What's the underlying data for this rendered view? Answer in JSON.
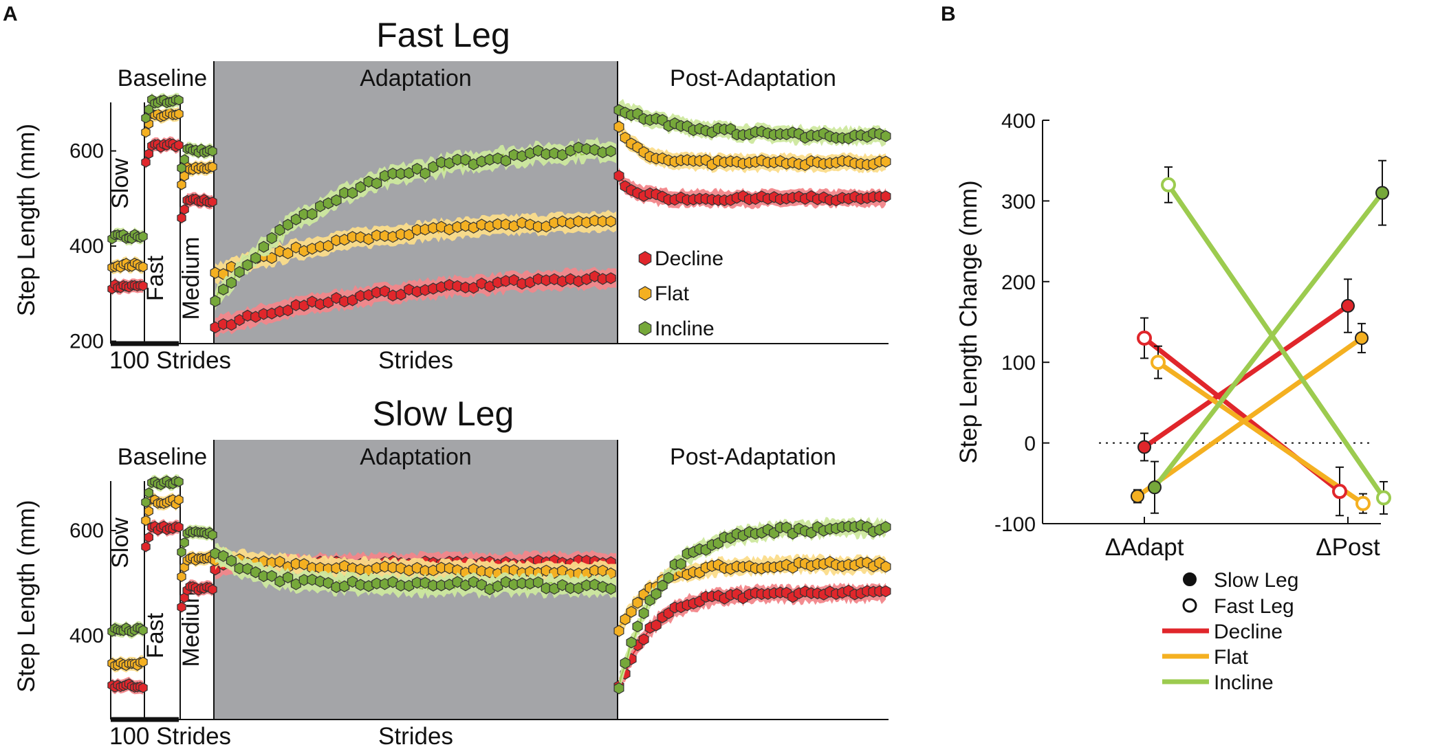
{
  "figure": {
    "panel_a_letter": "A",
    "panel_b_letter": "B"
  },
  "colors": {
    "decline": "#e0262b",
    "decline_band": "#f2868a",
    "flat": "#f4b021",
    "flat_band": "#fbdc8a",
    "incline": "#9ccb4f",
    "incline_band": "#cde89e",
    "incline_marker": "#76a83a",
    "adaptation_bg": "#a4a5a8"
  },
  "chart_data": [
    {
      "type": "line",
      "id": "fast-leg",
      "title": "Fast Leg",
      "ylabel": "Step Length (mm)",
      "ylim": [
        195,
        715
      ],
      "yticks": [
        200,
        400,
        600
      ],
      "sections": [
        "Baseline",
        "Adaptation",
        "Post-Adaptation"
      ],
      "baseline_labels": [
        "Slow",
        "Fast",
        "Medium"
      ],
      "xlabel_left": "100 Strides",
      "xlabel_center": "Strides",
      "series": [
        {
          "name": "Decline",
          "baseline": [
            315,
            612,
            495
          ],
          "adaptation": {
            "start": 230,
            "end": 345,
            "tau": 0.45,
            "noise": 6
          },
          "post": {
            "start": 545,
            "end": 500,
            "tau": 0.06,
            "noise": 5
          }
        },
        {
          "name": "Flat",
          "baseline": [
            360,
            675,
            565
          ],
          "adaptation": {
            "start": 340,
            "end": 458,
            "tau": 0.35,
            "noise": 6
          },
          "post": {
            "start": 650,
            "end": 575,
            "tau": 0.08,
            "noise": 5
          }
        },
        {
          "name": "Incline",
          "baseline": [
            420,
            705,
            600
          ],
          "adaptation": {
            "start": 285,
            "end": 612,
            "tau": 0.28,
            "noise": 9
          },
          "post": {
            "start": 690,
            "end": 630,
            "tau": 0.25,
            "noise": 6
          }
        }
      ],
      "legend": [
        "Decline",
        "Flat",
        "Incline"
      ]
    },
    {
      "type": "line",
      "id": "slow-leg",
      "title": "Slow Leg",
      "ylabel": "Step Length (mm)",
      "ylim": [
        240,
        710
      ],
      "yticks": [
        400,
        600
      ],
      "sections": [
        "Baseline",
        "Adaptation",
        "Post-Adaptation"
      ],
      "baseline_labels": [
        "Slow",
        "Fast",
        "Medium"
      ],
      "xlabel_left": "100 Strides",
      "xlabel_center": "Strides",
      "series": [
        {
          "name": "Decline",
          "baseline": [
            305,
            605,
            490
          ],
          "adaptation": {
            "start": 530,
            "end": 540,
            "tau": 0.3,
            "noise": 5
          },
          "post": {
            "start": 300,
            "end": 480,
            "tau": 0.12,
            "noise": 6
          }
        },
        {
          "name": "Flat",
          "baseline": [
            345,
            655,
            548
          ],
          "adaptation": {
            "start": 548,
            "end": 520,
            "tau": 0.3,
            "noise": 5
          },
          "post": {
            "start": 410,
            "end": 535,
            "tau": 0.12,
            "noise": 6
          }
        },
        {
          "name": "Incline",
          "baseline": [
            410,
            690,
            595
          ],
          "adaptation": {
            "start": 560,
            "end": 495,
            "tau": 0.1,
            "noise": 7
          },
          "post": {
            "start": 300,
            "end": 605,
            "tau": 0.15,
            "noise": 7
          }
        }
      ]
    },
    {
      "type": "line",
      "id": "step-length-change",
      "ylabel": "Step Length Change (mm)",
      "ylim": [
        -100,
        400
      ],
      "yticks": [
        -100,
        0,
        100,
        200,
        300,
        400
      ],
      "categories": [
        "ΔAdapt",
        "ΔPost"
      ],
      "series": [
        {
          "name": "Decline",
          "leg": "Slow Leg",
          "values": [
            -5,
            170
          ],
          "errors": [
            17,
            33
          ]
        },
        {
          "name": "Decline",
          "leg": "Fast Leg",
          "values": [
            130,
            -60
          ],
          "errors": [
            25,
            30
          ]
        },
        {
          "name": "Flat",
          "leg": "Slow Leg",
          "values": [
            -66,
            130
          ],
          "errors": [
            8,
            18
          ]
        },
        {
          "name": "Flat",
          "leg": "Fast Leg",
          "values": [
            100,
            -75
          ],
          "errors": [
            20,
            12
          ]
        },
        {
          "name": "Incline",
          "leg": "Slow Leg",
          "values": [
            -55,
            310
          ],
          "errors": [
            32,
            40
          ]
        },
        {
          "name": "Incline",
          "leg": "Fast Leg",
          "values": [
            320,
            -68
          ],
          "errors": [
            22,
            20
          ]
        }
      ],
      "legend": {
        "markers": [
          "Slow Leg",
          "Fast Leg"
        ],
        "lines": [
          "Decline",
          "Flat",
          "Incline"
        ]
      }
    }
  ]
}
